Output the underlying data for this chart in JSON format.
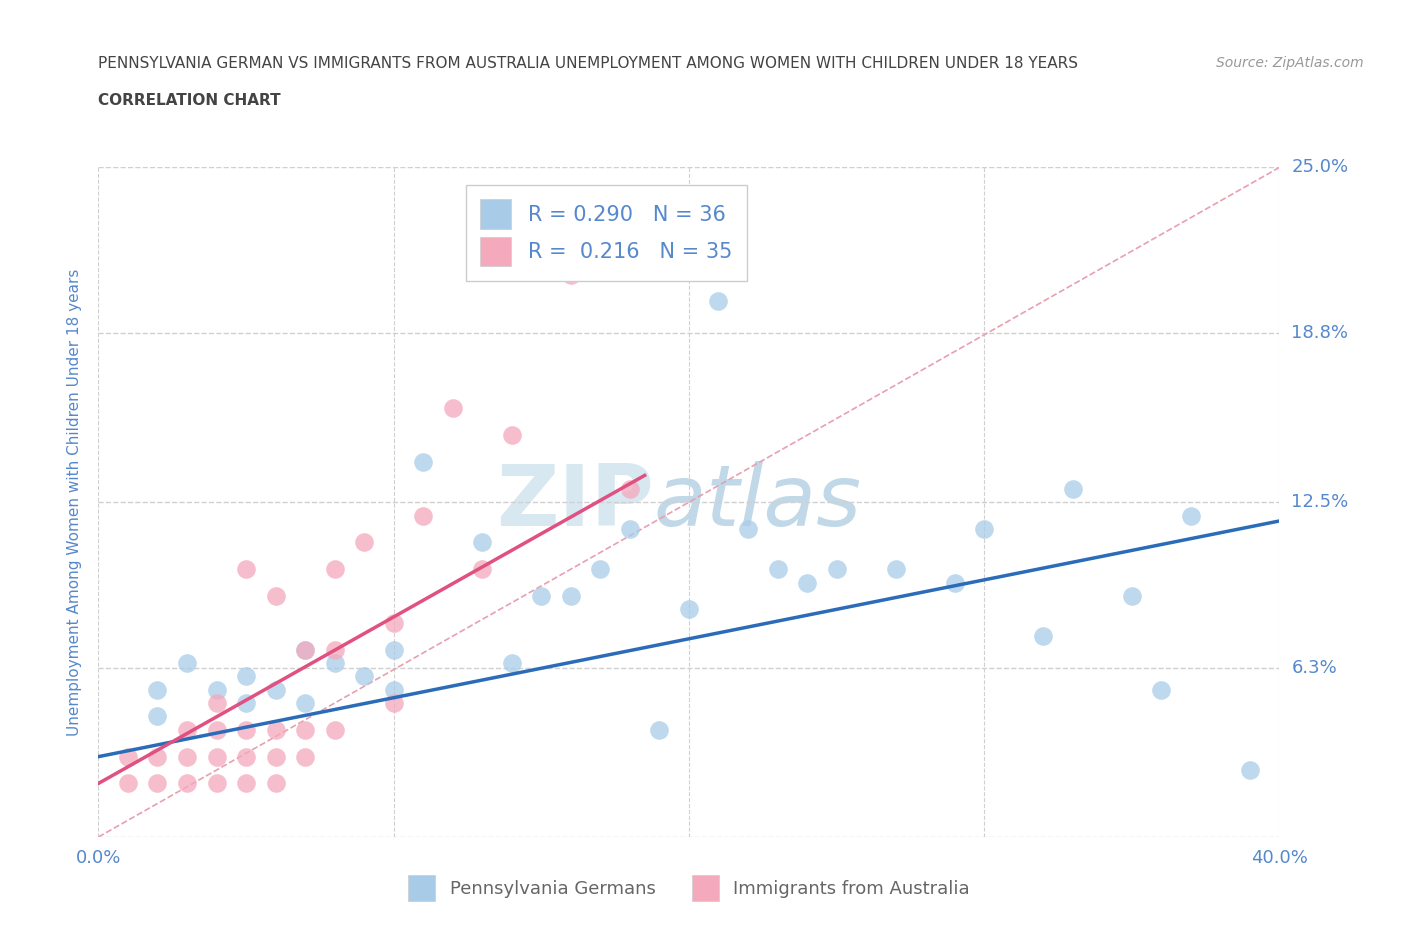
{
  "title_line1": "PENNSYLVANIA GERMAN VS IMMIGRANTS FROM AUSTRALIA UNEMPLOYMENT AMONG WOMEN WITH CHILDREN UNDER 18 YEARS",
  "title_line2": "CORRELATION CHART",
  "source_text": "Source: ZipAtlas.com",
  "ylabel": "Unemployment Among Women with Children Under 18 years",
  "xlim": [
    0.0,
    0.4
  ],
  "ylim": [
    0.0,
    0.25
  ],
  "yticks": [
    0.0,
    0.063,
    0.125,
    0.188,
    0.25
  ],
  "ytick_labels": [
    "",
    "6.3%",
    "12.5%",
    "18.8%",
    "25.0%"
  ],
  "xticks": [
    0.0,
    0.1,
    0.2,
    0.3,
    0.4
  ],
  "xtick_labels": [
    "0.0%",
    "",
    "",
    "",
    "40.0%"
  ],
  "blue_color": "#a8cce8",
  "pink_color": "#f4a9bc",
  "blue_line_color": "#2b6cb8",
  "pink_line_color": "#e05080",
  "diag_line_color": "#e8a0b0",
  "title_color": "#444444",
  "axis_label_color": "#5588cc",
  "tick_label_color": "#5588cc",
  "legend_r1": "R = 0.290",
  "legend_n1": "N = 36",
  "legend_r2": "R =  0.216",
  "legend_n2": "N = 35",
  "watermark": "ZIPatlas",
  "blue_scatter_x": [
    0.02,
    0.02,
    0.03,
    0.04,
    0.05,
    0.05,
    0.06,
    0.07,
    0.07,
    0.08,
    0.09,
    0.1,
    0.1,
    0.11,
    0.13,
    0.14,
    0.15,
    0.16,
    0.17,
    0.18,
    0.19,
    0.2,
    0.21,
    0.22,
    0.23,
    0.24,
    0.25,
    0.27,
    0.29,
    0.3,
    0.32,
    0.33,
    0.35,
    0.36,
    0.37,
    0.39
  ],
  "blue_scatter_y": [
    0.045,
    0.055,
    0.065,
    0.055,
    0.05,
    0.06,
    0.055,
    0.07,
    0.05,
    0.065,
    0.06,
    0.055,
    0.07,
    0.14,
    0.11,
    0.065,
    0.09,
    0.09,
    0.1,
    0.115,
    0.04,
    0.085,
    0.2,
    0.115,
    0.1,
    0.095,
    0.1,
    0.1,
    0.095,
    0.115,
    0.075,
    0.13,
    0.09,
    0.055,
    0.12,
    0.025
  ],
  "pink_scatter_x": [
    0.01,
    0.01,
    0.02,
    0.02,
    0.03,
    0.03,
    0.03,
    0.04,
    0.04,
    0.04,
    0.04,
    0.05,
    0.05,
    0.05,
    0.05,
    0.06,
    0.06,
    0.06,
    0.06,
    0.07,
    0.07,
    0.07,
    0.08,
    0.08,
    0.08,
    0.09,
    0.1,
    0.1,
    0.11,
    0.12,
    0.13,
    0.14,
    0.15,
    0.16,
    0.18
  ],
  "pink_scatter_y": [
    0.02,
    0.03,
    0.02,
    0.03,
    0.02,
    0.03,
    0.04,
    0.02,
    0.03,
    0.04,
    0.05,
    0.02,
    0.03,
    0.04,
    0.1,
    0.02,
    0.03,
    0.04,
    0.09,
    0.03,
    0.04,
    0.07,
    0.04,
    0.07,
    0.1,
    0.11,
    0.05,
    0.08,
    0.12,
    0.16,
    0.1,
    0.15,
    0.22,
    0.21,
    0.13
  ],
  "blue_line_x": [
    0.0,
    0.4
  ],
  "blue_line_y": [
    0.03,
    0.118
  ],
  "pink_line_x": [
    0.0,
    0.185
  ],
  "pink_line_y": [
    0.02,
    0.135
  ],
  "background_color": "#ffffff",
  "grid_color": "#d0d0d0"
}
